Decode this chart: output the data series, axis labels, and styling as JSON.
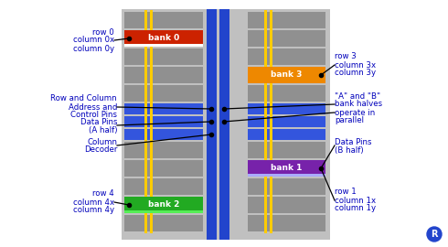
{
  "bg_color": "#ffffff",
  "outer_bg": "#c0c0c0",
  "gray_row_color": "#909090",
  "blue_bus_color": "#2244cc",
  "blue_row_color": "#3355dd",
  "yellow_color": "#ffcc00",
  "bank0_color": "#cc2200",
  "bank0_label": "bank 0",
  "bank0_line_color": "#ffffff",
  "bank1_color": "#7722aa",
  "bank1_label": "bank 1",
  "bank1_line_color": "#aaaaff",
  "bank2_color": "#22aa22",
  "bank2_label": "bank 2",
  "bank2_line_color": "#55ee55",
  "bank3_color": "#ee8800",
  "bank3_label": "bank 3",
  "ann_color": "#0000bb",
  "ann_fs": 6.2,
  "bank_fs": 6.5,
  "bank_color": "#ffffff",
  "icon_color": "#2244cc",
  "dot_color": "#000000",
  "line_color": "#000000",
  "lw": 0.9
}
